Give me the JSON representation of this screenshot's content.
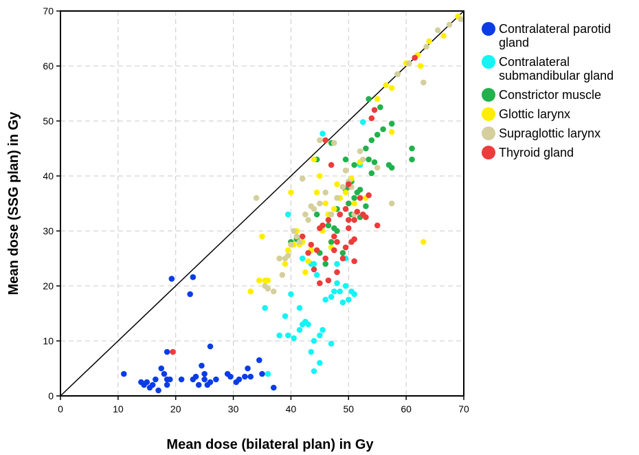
{
  "chart_data": {
    "type": "scatter",
    "title": "",
    "xlabel": "Mean dose (bilateral plan) in Gy",
    "ylabel": "Mean dose (SSG plan) in Gy",
    "xlim": [
      0,
      70
    ],
    "ylim": [
      0,
      70
    ],
    "xticks": [
      "0",
      "10",
      "20",
      "30",
      "40",
      "50",
      "60",
      "70"
    ],
    "yticks": [
      "0",
      "10",
      "20",
      "30",
      "40",
      "50",
      "60",
      "70"
    ],
    "grid": true,
    "reference_line": {
      "from": [
        0,
        0
      ],
      "to": [
        70,
        70
      ]
    },
    "legend_position": "right",
    "series": [
      {
        "name": "Contralateral parotid gland",
        "legend_lines": [
          "Contralateral parotid",
          "gland"
        ],
        "color": "#0a3de8",
        "points": [
          [
            11,
            4
          ],
          [
            14,
            2.5
          ],
          [
            14.5,
            2
          ],
          [
            15,
            2.5
          ],
          [
            15.5,
            1.5
          ],
          [
            16,
            2
          ],
          [
            16.5,
            3
          ],
          [
            17,
            1
          ],
          [
            17.5,
            5
          ],
          [
            18,
            4
          ],
          [
            18.5,
            2
          ],
          [
            18.5,
            3
          ],
          [
            18.5,
            8
          ],
          [
            19,
            3
          ],
          [
            19.3,
            21.3
          ],
          [
            21,
            3
          ],
          [
            22.5,
            18.5
          ],
          [
            23,
            21.6
          ],
          [
            23,
            3
          ],
          [
            23.5,
            3.5
          ],
          [
            24,
            2
          ],
          [
            24.5,
            5.5
          ],
          [
            25,
            3
          ],
          [
            25,
            4
          ],
          [
            25.5,
            2
          ],
          [
            26,
            2.5
          ],
          [
            26,
            9
          ],
          [
            27,
            3
          ],
          [
            29,
            4
          ],
          [
            29.5,
            3.5
          ],
          [
            30.5,
            2.5
          ],
          [
            31,
            3
          ],
          [
            32,
            3.5
          ],
          [
            32.5,
            5
          ],
          [
            33,
            3.5
          ],
          [
            34.5,
            6.5
          ],
          [
            35,
            4
          ],
          [
            37,
            1.5
          ]
        ]
      },
      {
        "name": "Contralateral submandibular gland",
        "legend_lines": [
          "Contralateral",
          "submandibular gland"
        ],
        "color": "#13f4f4",
        "points": [
          [
            35.5,
            16
          ],
          [
            36,
            4
          ],
          [
            38,
            11
          ],
          [
            39,
            14.5
          ],
          [
            39.5,
            11
          ],
          [
            40,
            18.5
          ],
          [
            40.5,
            10.5
          ],
          [
            41.5,
            16
          ],
          [
            41.5,
            12
          ],
          [
            42,
            13
          ],
          [
            42.5,
            13.5
          ],
          [
            43,
            13
          ],
          [
            43.5,
            8
          ],
          [
            44,
            4.5
          ],
          [
            44,
            10
          ],
          [
            44.5,
            22
          ],
          [
            45,
            6
          ],
          [
            45,
            11
          ],
          [
            45.5,
            12
          ],
          [
            46,
            17.5
          ],
          [
            46.5,
            33
          ],
          [
            47,
            18
          ],
          [
            47,
            9.5
          ],
          [
            47.5,
            19
          ],
          [
            48,
            20.5
          ],
          [
            48.5,
            19
          ],
          [
            49,
            17
          ],
          [
            49.5,
            20
          ],
          [
            50,
            17.5
          ],
          [
            50.5,
            19
          ],
          [
            51,
            18.5
          ],
          [
            52,
            42
          ],
          [
            52.5,
            49.8
          ],
          [
            45.5,
            47.7
          ],
          [
            39.5,
            33
          ],
          [
            41,
            28.5
          ],
          [
            42,
            25
          ],
          [
            43.5,
            24
          ],
          [
            44,
            24
          ],
          [
            48,
            24
          ],
          [
            49.5,
            25
          ],
          [
            50.5,
            28
          ]
        ]
      },
      {
        "name": "Constrictor muscle",
        "color": "#22b14c",
        "points": [
          [
            40,
            28
          ],
          [
            41,
            28.5
          ],
          [
            44.5,
            33
          ],
          [
            45,
            26
          ],
          [
            46,
            24
          ],
          [
            46.5,
            31
          ],
          [
            47,
            28
          ],
          [
            47.5,
            30.5
          ],
          [
            48,
            30
          ],
          [
            48,
            34
          ],
          [
            48.5,
            36
          ],
          [
            49,
            26
          ],
          [
            49.5,
            37.5
          ],
          [
            50,
            38
          ],
          [
            50,
            35
          ],
          [
            50.5,
            33
          ],
          [
            50.5,
            39
          ],
          [
            51,
            36
          ],
          [
            51.5,
            37
          ],
          [
            52,
            37.5
          ],
          [
            52,
            32.5
          ],
          [
            52.5,
            33
          ],
          [
            53,
            34.5
          ],
          [
            53.5,
            43
          ],
          [
            53,
            45
          ],
          [
            54,
            46.5
          ],
          [
            54,
            40.5
          ],
          [
            54.5,
            42.5
          ],
          [
            55,
            47.5
          ],
          [
            55.5,
            52.5
          ],
          [
            56,
            48.5
          ],
          [
            57,
            42
          ],
          [
            57.5,
            41.5
          ],
          [
            57.5,
            49.5
          ],
          [
            61,
            45
          ],
          [
            61,
            43
          ],
          [
            53.5,
            54
          ],
          [
            58.5,
            58.5
          ],
          [
            52,
            42.5
          ],
          [
            51,
            42
          ],
          [
            49.5,
            43
          ],
          [
            44.5,
            43
          ],
          [
            47,
            46
          ]
        ]
      },
      {
        "name": "Glottic larynx",
        "color": "#ffee00",
        "points": [
          [
            33,
            19
          ],
          [
            34.5,
            21
          ],
          [
            35,
            29
          ],
          [
            35.5,
            21
          ],
          [
            36,
            21
          ],
          [
            38,
            25
          ],
          [
            39,
            24
          ],
          [
            39.5,
            26.5
          ],
          [
            40,
            37
          ],
          [
            40.5,
            27.5
          ],
          [
            41,
            30
          ],
          [
            41.5,
            27.5
          ],
          [
            42,
            28
          ],
          [
            42.5,
            22.5
          ],
          [
            43,
            24.5
          ],
          [
            43.5,
            26.5
          ],
          [
            44,
            43
          ],
          [
            44.5,
            37
          ],
          [
            45,
            40
          ],
          [
            45.5,
            30
          ],
          [
            46,
            35
          ],
          [
            46.5,
            33
          ],
          [
            47,
            27
          ],
          [
            47.5,
            34
          ],
          [
            48,
            38.5
          ],
          [
            48.5,
            36
          ],
          [
            49,
            38
          ],
          [
            49.5,
            37
          ],
          [
            50,
            39
          ],
          [
            50.5,
            39.5
          ],
          [
            51,
            35
          ],
          [
            52,
            42.5
          ],
          [
            53,
            36
          ],
          [
            55,
            54
          ],
          [
            56.5,
            56.5
          ],
          [
            57.5,
            56
          ],
          [
            57.5,
            48
          ],
          [
            60,
            60.5
          ],
          [
            62,
            62
          ],
          [
            62.5,
            60
          ],
          [
            63,
            28
          ],
          [
            64,
            64.5
          ],
          [
            66.5,
            65.5
          ],
          [
            69,
            69
          ]
        ]
      },
      {
        "name": "Supraglottic larynx",
        "color": "#d4cf9c",
        "points": [
          [
            34,
            36
          ],
          [
            35.5,
            20
          ],
          [
            36,
            19.5
          ],
          [
            37,
            19
          ],
          [
            38,
            25
          ],
          [
            38.5,
            22
          ],
          [
            39,
            25
          ],
          [
            39.5,
            25.5
          ],
          [
            40,
            27.5
          ],
          [
            40.5,
            30
          ],
          [
            41,
            29
          ],
          [
            41.5,
            28
          ],
          [
            42,
            39.5
          ],
          [
            42.5,
            33
          ],
          [
            43,
            32
          ],
          [
            43.5,
            34.5
          ],
          [
            44,
            34
          ],
          [
            45,
            35
          ],
          [
            45,
            46.5
          ],
          [
            46,
            37
          ],
          [
            47,
            33
          ],
          [
            47.5,
            46
          ],
          [
            48,
            36
          ],
          [
            49,
            38
          ],
          [
            49.5,
            41
          ],
          [
            50,
            39
          ],
          [
            50.5,
            38
          ],
          [
            51,
            33
          ],
          [
            52,
            44.5
          ],
          [
            52.5,
            43
          ],
          [
            55,
            41.5
          ],
          [
            57.5,
            35
          ],
          [
            58.5,
            58.5
          ],
          [
            60.5,
            60.5
          ],
          [
            63,
            57
          ],
          [
            63.5,
            63.5
          ],
          [
            65.5,
            66.5
          ],
          [
            67.5,
            67.5
          ],
          [
            69.5,
            68.5
          ]
        ]
      },
      {
        "name": "Thyroid gland",
        "color": "#ee3b3b",
        "points": [
          [
            19.5,
            8
          ],
          [
            42,
            29
          ],
          [
            43,
            26
          ],
          [
            43.5,
            27.5
          ],
          [
            44,
            23
          ],
          [
            44.5,
            26.5
          ],
          [
            45,
            30.5
          ],
          [
            45.5,
            31
          ],
          [
            46,
            46.5
          ],
          [
            46,
            25
          ],
          [
            46.5,
            32
          ],
          [
            47,
            42
          ],
          [
            47.5,
            26.5
          ],
          [
            48,
            28
          ],
          [
            48,
            22.5
          ],
          [
            48.5,
            33
          ],
          [
            49,
            25
          ],
          [
            49.5,
            27
          ],
          [
            50,
            32
          ],
          [
            50,
            38.5
          ],
          [
            50.5,
            28
          ],
          [
            51,
            28.5
          ],
          [
            51,
            32
          ],
          [
            51.5,
            33.5
          ],
          [
            52,
            36
          ],
          [
            52.5,
            33
          ],
          [
            53,
            32.5
          ],
          [
            53.5,
            36.5
          ],
          [
            54,
            50.5
          ],
          [
            54.5,
            52
          ],
          [
            55,
            31
          ],
          [
            61.5,
            61.5
          ],
          [
            45,
            20.5
          ],
          [
            46.5,
            21
          ],
          [
            51,
            24.5
          ],
          [
            47.5,
            29
          ],
          [
            48.5,
            33
          ],
          [
            49.5,
            34
          ],
          [
            50,
            30.5
          ]
        ]
      }
    ]
  }
}
